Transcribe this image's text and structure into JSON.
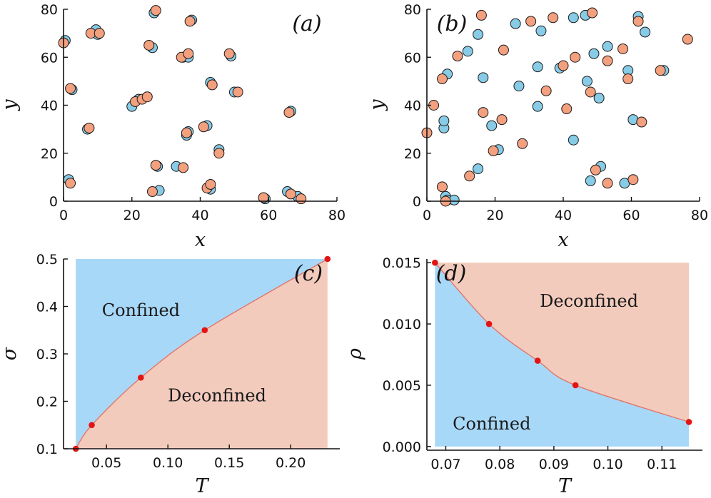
{
  "colors": {
    "blue_point": "#87cbe6",
    "orange_point": "#f3a07f",
    "confined_fill": "#a8d8f8",
    "deconfined_fill": "#f3cbbd",
    "boundary_line": "#e0776a",
    "boundary_point": "#e31414",
    "axis": "#111111"
  },
  "chart_data": [
    {
      "id": "a",
      "type": "scatter",
      "panel_label": "(a)",
      "xlabel": "x",
      "ylabel": "y",
      "xlim": [
        0,
        80
      ],
      "ylim": [
        0,
        80
      ],
      "xticks": [
        0,
        20,
        40,
        60,
        80
      ],
      "yticks": [
        0,
        20,
        40,
        60,
        80
      ],
      "series": [
        {
          "name": "blue",
          "color_key": "blue_point",
          "points": [
            [
              0.5,
              67
            ],
            [
              9.5,
              71.5
            ],
            [
              10,
              69.5
            ],
            [
              26.5,
              78.5
            ],
            [
              37.5,
              75.5
            ],
            [
              26,
              64
            ],
            [
              35,
              60
            ],
            [
              36.5,
              60
            ],
            [
              49,
              60.5
            ],
            [
              2.5,
              46.5
            ],
            [
              43,
              49.5
            ],
            [
              50,
              45.5
            ],
            [
              20,
              39.5
            ],
            [
              22,
              42.5
            ],
            [
              42,
              31.5
            ],
            [
              7,
              30
            ],
            [
              36,
              27.5
            ],
            [
              45.5,
              21.5
            ],
            [
              36.5,
              29
            ],
            [
              66.5,
              37.5
            ],
            [
              1.5,
              9
            ],
            [
              28,
              4.5
            ],
            [
              27.5,
              14.5
            ],
            [
              33,
              14.5
            ],
            [
              43,
              5
            ],
            [
              59,
              1
            ],
            [
              65.5,
              4
            ],
            [
              68.5,
              2
            ]
          ]
        },
        {
          "name": "orange",
          "color_key": "orange_point",
          "points": [
            [
              0,
              66
            ],
            [
              8,
              70
            ],
            [
              10.5,
              70
            ],
            [
              27,
              79.5
            ],
            [
              37,
              75
            ],
            [
              25,
              65
            ],
            [
              34.5,
              60
            ],
            [
              36.5,
              61.5
            ],
            [
              48.5,
              61.5
            ],
            [
              2,
              47
            ],
            [
              43.5,
              48.5
            ],
            [
              51,
              45.5
            ],
            [
              21,
              41.5
            ],
            [
              23,
              42.5
            ],
            [
              24.5,
              43.5
            ],
            [
              41,
              31
            ],
            [
              7.5,
              30.5
            ],
            [
              36,
              28.5
            ],
            [
              45.5,
              20
            ],
            [
              66,
              37
            ],
            [
              2,
              7.5
            ],
            [
              26,
              4
            ],
            [
              27,
              15
            ],
            [
              35,
              14
            ],
            [
              42,
              5.5
            ],
            [
              43,
              7
            ],
            [
              58.5,
              1.5
            ],
            [
              66.5,
              3
            ],
            [
              69.5,
              1
            ]
          ]
        }
      ]
    },
    {
      "id": "b",
      "type": "scatter",
      "panel_label": "(b)",
      "xlabel": "x",
      "ylabel": "y",
      "xlim": [
        0,
        80
      ],
      "ylim": [
        0,
        80
      ],
      "xticks": [
        0,
        20,
        40,
        60,
        80
      ],
      "yticks": [
        0,
        20,
        40,
        60,
        80
      ],
      "series": [
        {
          "name": "blue",
          "color_key": "blue_point",
          "points": [
            [
              15,
              69.5
            ],
            [
              26,
              74
            ],
            [
              33.5,
              71
            ],
            [
              43,
              76.5
            ],
            [
              46.5,
              77.5
            ],
            [
              62,
              77
            ],
            [
              64,
              70.5
            ],
            [
              12,
              62.5
            ],
            [
              6,
              53
            ],
            [
              16.5,
              51.5
            ],
            [
              32.5,
              56
            ],
            [
              39,
              55.5
            ],
            [
              53,
              64.5
            ],
            [
              49,
              61.5
            ],
            [
              59,
              54.5
            ],
            [
              69.5,
              54.5
            ],
            [
              27,
              48
            ],
            [
              47,
              50
            ],
            [
              50.5,
              43
            ],
            [
              32.5,
              39.5
            ],
            [
              19,
              31.5
            ],
            [
              5,
              30.5
            ],
            [
              5,
              33.5
            ],
            [
              43,
              25.5
            ],
            [
              60.5,
              34
            ],
            [
              21,
              21.5
            ],
            [
              15,
              13.5
            ],
            [
              51,
              14.5
            ],
            [
              48,
              8.5
            ],
            [
              58,
              7.5
            ],
            [
              5.5,
              2
            ],
            [
              6,
              0.5
            ],
            [
              8,
              0.5
            ]
          ]
        },
        {
          "name": "orange",
          "color_key": "orange_point",
          "points": [
            [
              16,
              77.5
            ],
            [
              30.5,
              75
            ],
            [
              37,
              76.5
            ],
            [
              48.5,
              78.5
            ],
            [
              62,
              75
            ],
            [
              76.5,
              67.5
            ],
            [
              22.5,
              63
            ],
            [
              9,
              60.5
            ],
            [
              43.5,
              60
            ],
            [
              57.5,
              63.5
            ],
            [
              53,
              58.5
            ],
            [
              40,
              56.5
            ],
            [
              4.5,
              51
            ],
            [
              59,
              51
            ],
            [
              68.5,
              54.5
            ],
            [
              35,
              46
            ],
            [
              48,
              45.5
            ],
            [
              2,
              40
            ],
            [
              16.5,
              37
            ],
            [
              41,
              38.5
            ],
            [
              22,
              34
            ],
            [
              63,
              33
            ],
            [
              0,
              28.5
            ],
            [
              28,
              24
            ],
            [
              19.5,
              21
            ],
            [
              12.5,
              10.5
            ],
            [
              49.5,
              13
            ],
            [
              53,
              7.5
            ],
            [
              60.5,
              9
            ],
            [
              4.5,
              6
            ],
            [
              5.5,
              0
            ]
          ]
        }
      ]
    },
    {
      "id": "c",
      "type": "area",
      "panel_label": "(c)",
      "xlabel": "T",
      "ylabel": "σ",
      "xlim": [
        0.015,
        0.24
      ],
      "ylim": [
        0.1,
        0.5
      ],
      "fill_xrange": [
        0.025,
        0.23
      ],
      "xticks": [
        0.05,
        0.1,
        0.15,
        0.2
      ],
      "xtick_labels": [
        "0.05",
        "0.10",
        "0.15",
        "0.20"
      ],
      "yticks": [
        0.1,
        0.2,
        0.3,
        0.4,
        0.5
      ],
      "ytick_labels": [
        "0.1",
        "0.2",
        "0.3",
        "0.4",
        "0.5"
      ],
      "boundary": {
        "x": [
          0.025,
          0.038,
          0.078,
          0.13,
          0.23
        ],
        "y": [
          0.1,
          0.15,
          0.25,
          0.35,
          0.5
        ]
      },
      "above_region": "confined",
      "regions": {
        "confined": "Confined",
        "deconfined": "Deconfined"
      },
      "region_label_at": {
        "confined": [
          0.078,
          0.38
        ],
        "deconfined": [
          0.14,
          0.2
        ]
      }
    },
    {
      "id": "d",
      "type": "area",
      "panel_label": "(d)",
      "xlabel": "T",
      "ylabel": "ρ",
      "xlim": [
        0.0665,
        0.1175
      ],
      "ylim": [
        -0.0003,
        0.0153
      ],
      "fill_xrange": [
        0.068,
        0.115
      ],
      "xticks": [
        0.07,
        0.08,
        0.09,
        0.1,
        0.11
      ],
      "xtick_labels": [
        "0.07",
        "0.08",
        "0.09",
        "0.10",
        "0.11"
      ],
      "yticks": [
        0.0,
        0.005,
        0.01,
        0.015
      ],
      "ytick_labels": [
        "0.000",
        "0.005",
        "0.010",
        "0.015"
      ],
      "boundary": {
        "x": [
          0.068,
          0.078,
          0.087,
          0.094,
          0.115
        ],
        "y": [
          0.015,
          0.01,
          0.007,
          0.005,
          0.002
        ]
      },
      "above_region": "deconfined",
      "regions": {
        "confined": "Confined",
        "deconfined": "Deconfined"
      },
      "region_label_at": {
        "confined": [
          0.0785,
          0.0014
        ],
        "deconfined": [
          0.0965,
          0.0114
        ]
      }
    }
  ]
}
